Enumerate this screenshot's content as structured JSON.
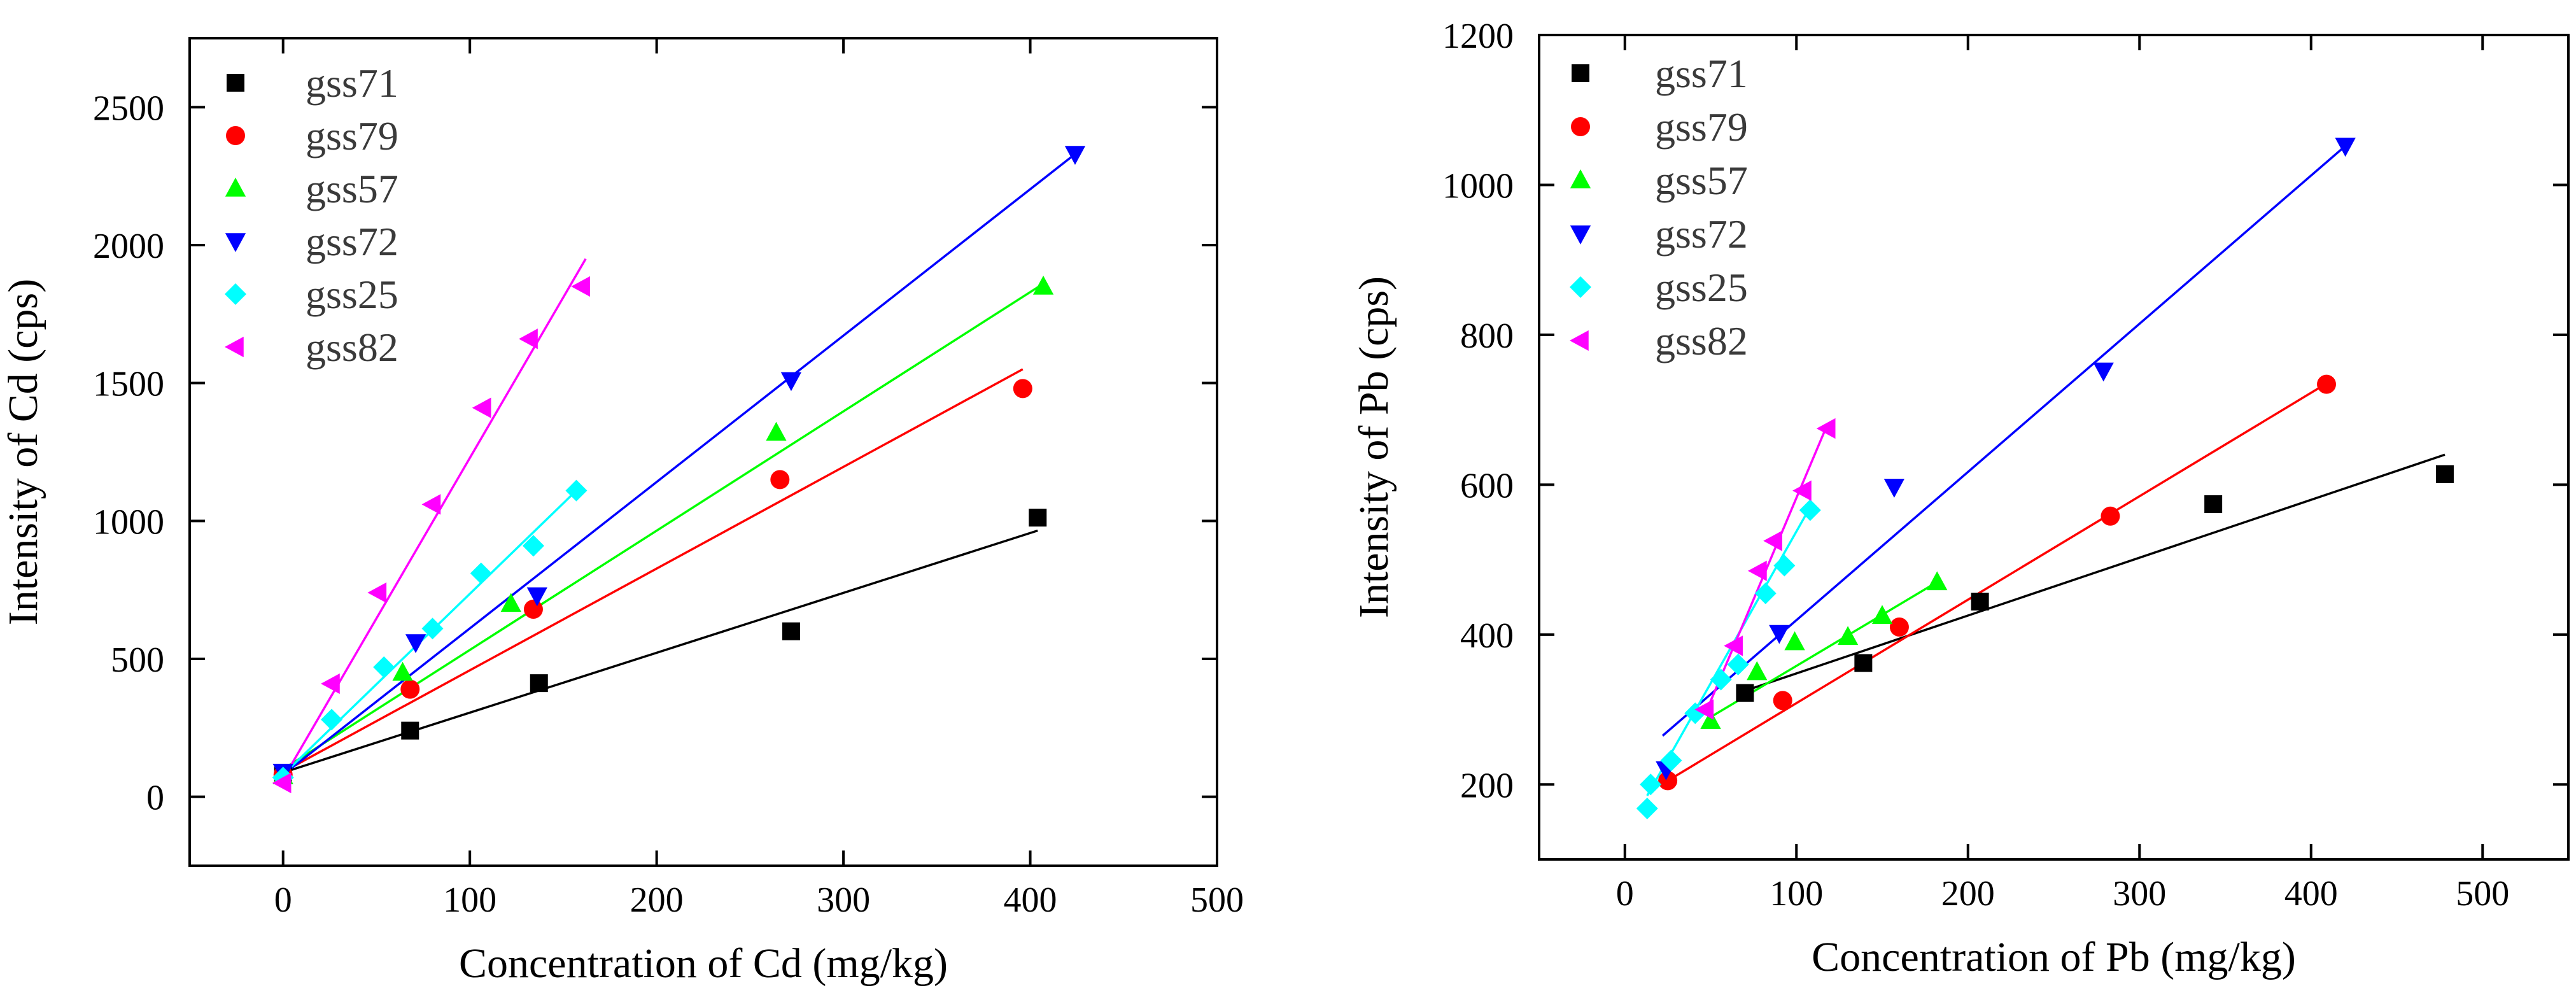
{
  "chart_data": [
    {
      "type": "scatter",
      "ylabel": "Intensity of Cd (cps)",
      "xlabel": "Concentration of Cd (mg/kg)",
      "xlim": [
        -50,
        500
      ],
      "ylim": [
        -250,
        2750
      ],
      "xticks": [
        0,
        100,
        200,
        300,
        400,
        500
      ],
      "yticks": [
        0,
        500,
        1000,
        1500,
        2000,
        2500
      ],
      "legend_position": "top-left",
      "series": [
        {
          "name": "gss71",
          "color": "#000000",
          "marker": "square",
          "x": [
            0,
            68,
            137,
            272,
            404
          ],
          "y": [
            85,
            240,
            412,
            600,
            1012
          ],
          "fit": {
            "x": [
              0,
              404
            ],
            "y": [
              88,
              965
            ]
          }
        },
        {
          "name": "gss79",
          "color": "#ff0000",
          "marker": "circle",
          "x": [
            0,
            68,
            134,
            266,
            396
          ],
          "y": [
            80,
            390,
            680,
            1150,
            1480
          ],
          "fit": {
            "x": [
              0,
              396
            ],
            "y": [
              90,
              1550
            ]
          }
        },
        {
          "name": "gss57",
          "color": "#00ff00",
          "marker": "triangle-up",
          "x": [
            0,
            64,
            122,
            264,
            407
          ],
          "y": [
            75,
            450,
            700,
            1320,
            1850
          ],
          "fit": {
            "x": [
              0,
              407
            ],
            "y": [
              100,
              1860
            ]
          }
        },
        {
          "name": "gss72",
          "color": "#0000ff",
          "marker": "triangle-down",
          "x": [
            0,
            71,
            136,
            272,
            424
          ],
          "y": [
            90,
            560,
            730,
            1510,
            2330
          ],
          "fit": {
            "x": [
              0,
              424
            ],
            "y": [
              80,
              2330
            ]
          }
        },
        {
          "name": "gss25",
          "color": "#00ffff",
          "marker": "diamond",
          "x": [
            0,
            26,
            54,
            80,
            106,
            134,
            157
          ],
          "y": [
            70,
            280,
            470,
            610,
            810,
            910,
            1110
          ],
          "fit": {
            "x": [
              0,
              157
            ],
            "y": [
              80,
              1110
            ]
          }
        },
        {
          "name": "gss82",
          "color": "#ff00ff",
          "marker": "triangle-left",
          "x": [
            0,
            26,
            51,
            80,
            107,
            132,
            160
          ],
          "y": [
            50,
            410,
            740,
            1060,
            1410,
            1660,
            1850
          ],
          "fit": {
            "x": [
              0,
              162
            ],
            "y": [
              65,
              1950
            ]
          }
        }
      ]
    },
    {
      "type": "scatter",
      "ylabel": "Intensity of Pb (cps)",
      "xlabel": "Concentration of Pb (mg/kg)",
      "xlim": [
        -50,
        550
      ],
      "ylim": [
        100,
        1200
      ],
      "xticks": [
        0,
        100,
        200,
        300,
        400,
        500
      ],
      "yticks": [
        200,
        400,
        600,
        800,
        1000,
        1200
      ],
      "legend_position": "top-left",
      "series": [
        {
          "name": "gss71",
          "color": "#000000",
          "marker": "square",
          "x": [
            70,
            139,
            207,
            343,
            478
          ],
          "y": [
            322,
            362,
            444,
            574,
            614
          ],
          "fit": {
            "x": [
              70,
              478
            ],
            "y": [
              325,
              640
            ]
          }
        },
        {
          "name": "gss79",
          "color": "#ff0000",
          "marker": "circle",
          "x": [
            25,
            92,
            160,
            283,
            409
          ],
          "y": [
            205,
            312,
            410,
            558,
            734
          ],
          "fit": {
            "x": [
              25,
              409
            ],
            "y": [
              205,
              735
            ]
          }
        },
        {
          "name": "gss57",
          "color": "#00ff00",
          "marker": "triangle-up",
          "x": [
            50,
            77,
            99,
            130,
            150,
            182
          ],
          "y": [
            285,
            350,
            390,
            397,
            425,
            470
          ],
          "fit": {
            "x": [
              50,
              182
            ],
            "y": [
              290,
              470
            ]
          }
        },
        {
          "name": "gss72",
          "color": "#0000ff",
          "marker": "triangle-down",
          "x": [
            24,
            90,
            157,
            279,
            420
          ],
          "y": [
            220,
            402,
            597,
            752,
            1052
          ],
          "fit": {
            "x": [
              22,
              420
            ],
            "y": [
              265,
              1052
            ]
          }
        },
        {
          "name": "gss25",
          "color": "#00ffff",
          "marker": "diamond",
          "x": [
            13,
            15,
            27,
            41,
            56,
            66,
            82,
            93,
            108
          ],
          "y": [
            168,
            200,
            232,
            295,
            340,
            360,
            455,
            492,
            566
          ],
          "fit": {
            "x": [
              13,
              108
            ],
            "y": [
              185,
              570
            ]
          }
        },
        {
          "name": "gss82",
          "color": "#ff00ff",
          "marker": "triangle-left",
          "x": [
            47,
            64,
            78,
            87,
            104,
            118
          ],
          "y": [
            300,
            385,
            485,
            525,
            592,
            675
          ],
          "fit": {
            "x": [
              47,
              118
            ],
            "y": [
              295,
              680
            ]
          }
        }
      ]
    }
  ]
}
